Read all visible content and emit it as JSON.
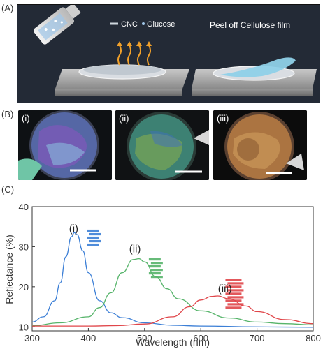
{
  "panels": {
    "a_label": "(A)",
    "b_label": "(B)",
    "c_label": "(C)"
  },
  "schematic": {
    "legend_cnc": "CNC",
    "legend_glucose": "Glucose",
    "step_caption": "Peel off Cellulose film"
  },
  "photos": [
    {
      "label": "(i)",
      "tint": "#6a5aa8"
    },
    {
      "label": "(ii)",
      "tint": "#3f8a7a"
    },
    {
      "label": "(iii)",
      "tint": "#b47a44"
    }
  ],
  "colors": {
    "series_i": "#3c7fd6",
    "series_ii": "#56b46a",
    "series_iii": "#e0464a",
    "panel_bg": "#232a36",
    "axis": "#333333"
  },
  "chart_data": {
    "type": "line",
    "xlabel": "Wavelength (nm)",
    "ylabel": "Reflectance (%)",
    "xlim": [
      300,
      800
    ],
    "ylim": [
      9,
      40
    ],
    "xticks": [
      300,
      400,
      500,
      600,
      700,
      800
    ],
    "yticks": [
      10,
      20,
      30,
      40
    ],
    "grid": false,
    "series": [
      {
        "name": "(i)",
        "color": "#3c7fd6",
        "x": [
          300,
          320,
          340,
          350,
          360,
          370,
          375,
          380,
          390,
          400,
          420,
          440,
          460,
          500,
          550,
          600,
          700,
          800
        ],
        "y": [
          11.2,
          12.5,
          16.5,
          21.0,
          27.5,
          32.5,
          33.5,
          33.0,
          29.0,
          23.5,
          16.5,
          13.5,
          12.3,
          11.0,
          10.4,
          10.2,
          10.0,
          9.9
        ]
      },
      {
        "name": "(ii)",
        "color": "#56b46a",
        "x": [
          300,
          350,
          400,
          420,
          440,
          460,
          480,
          490,
          500,
          520,
          540,
          560,
          600,
          650,
          700,
          750,
          800
        ],
        "y": [
          10.3,
          11.0,
          12.5,
          14.8,
          18.5,
          23.5,
          26.8,
          27.0,
          26.2,
          22.5,
          19.5,
          17.0,
          14.0,
          12.2,
          11.2,
          10.8,
          10.5
        ]
      },
      {
        "name": "(iii)",
        "color": "#e0464a",
        "x": [
          300,
          400,
          450,
          500,
          550,
          580,
          600,
          620,
          630,
          650,
          680,
          700,
          750,
          800
        ],
        "y": [
          10.2,
          10.2,
          10.3,
          10.7,
          12.5,
          15.0,
          16.7,
          17.6,
          17.7,
          17.0,
          15.2,
          13.8,
          11.8,
          10.8
        ]
      }
    ],
    "annotations": [
      "(i)",
      "(ii)",
      "(iii)"
    ]
  }
}
